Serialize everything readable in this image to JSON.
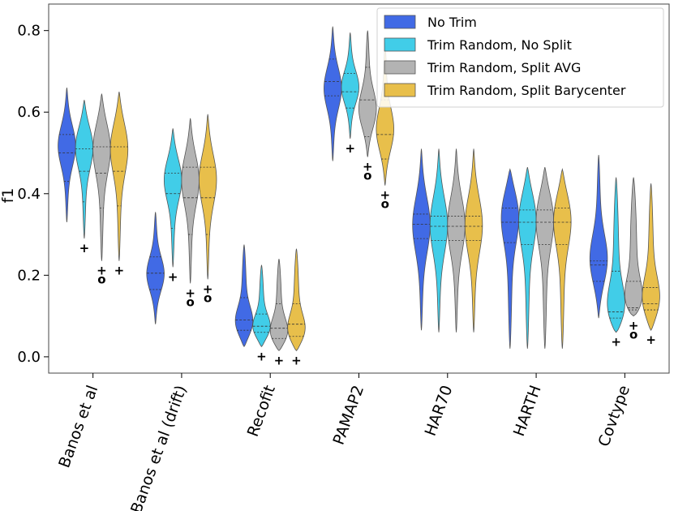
{
  "chart_data": {
    "type": "violin",
    "ylabel": "f1",
    "xlabel": "",
    "ylim": [
      -0.04,
      0.865
    ],
    "yticks": [
      "0.0",
      "0.2",
      "0.4",
      "0.6",
      "0.8"
    ],
    "ytick_values": [
      0.0,
      0.2,
      0.4,
      0.6,
      0.8
    ],
    "grid": false,
    "legend_position": "top-right",
    "categories": [
      "Banos et al",
      "Banos et al (drift)",
      "Recofit",
      "PAMAP2",
      "HAR70",
      "HARTH",
      "Covtype"
    ],
    "series": [
      {
        "name": "No Trim",
        "color": "#2050e0",
        "violins": [
          {
            "min": 0.33,
            "max": 0.66,
            "q1": 0.43,
            "median": 0.5,
            "q3": 0.545,
            "peak": 0.52,
            "bias": 0.25,
            "outliers": []
          },
          {
            "min": 0.08,
            "max": 0.355,
            "q1": 0.165,
            "median": 0.205,
            "q3": 0.245,
            "peak": 0.2,
            "bias": 0.15,
            "outliers": []
          },
          {
            "min": 0.025,
            "max": 0.275,
            "q1": 0.065,
            "median": 0.09,
            "q3": 0.145,
            "peak": 0.075,
            "bias": -0.3,
            "outliers": []
          },
          {
            "min": 0.48,
            "max": 0.81,
            "q1": 0.64,
            "median": 0.675,
            "q3": 0.73,
            "peak": 0.66,
            "bias": 0.1,
            "outliers": []
          },
          {
            "min": 0.065,
            "max": 0.51,
            "q1": 0.29,
            "median": 0.325,
            "q3": 0.35,
            "peak": 0.33,
            "bias": 0.0,
            "outliers": []
          },
          {
            "min": 0.02,
            "max": 0.46,
            "q1": 0.28,
            "median": 0.33,
            "q3": 0.365,
            "peak": 0.36,
            "bias": 0.4,
            "outliers": []
          },
          {
            "min": 0.095,
            "max": 0.495,
            "q1": 0.185,
            "median": 0.225,
            "q3": 0.235,
            "peak": 0.23,
            "bias": 0.0,
            "outliers": []
          }
        ]
      },
      {
        "name": "Trim Random, No Split",
        "color": "#20c4e4",
        "violins": [
          {
            "min": 0.29,
            "max": 0.63,
            "q1": 0.38,
            "median": 0.455,
            "q3": 0.51,
            "peak": 0.52,
            "bias": 0.4,
            "outliers": [
              "+"
            ]
          },
          {
            "min": 0.22,
            "max": 0.56,
            "q1": 0.315,
            "median": 0.4,
            "q3": 0.45,
            "peak": 0.44,
            "bias": 0.4,
            "outliers": [
              "+"
            ]
          },
          {
            "min": 0.025,
            "max": 0.225,
            "q1": 0.06,
            "median": 0.075,
            "q3": 0.105,
            "peak": 0.065,
            "bias": -0.3,
            "outliers": [
              "+"
            ]
          },
          {
            "min": 0.535,
            "max": 0.795,
            "q1": 0.61,
            "median": 0.65,
            "q3": 0.695,
            "peak": 0.66,
            "bias": 0.1,
            "outliers": [
              "+"
            ]
          },
          {
            "min": 0.06,
            "max": 0.51,
            "q1": 0.285,
            "median": 0.32,
            "q3": 0.345,
            "peak": 0.33,
            "bias": 0.0,
            "outliers": []
          },
          {
            "min": 0.02,
            "max": 0.465,
            "q1": 0.275,
            "median": 0.33,
            "q3": 0.36,
            "peak": 0.35,
            "bias": 0.3,
            "outliers": []
          },
          {
            "min": 0.06,
            "max": 0.44,
            "q1": 0.095,
            "median": 0.11,
            "q3": 0.21,
            "peak": 0.1,
            "bias": -0.5,
            "outliers": [
              "+"
            ]
          }
        ]
      },
      {
        "name": "Trim Random, Split AVG",
        "color": "#a6a6a6",
        "violins": [
          {
            "min": 0.235,
            "max": 0.645,
            "q1": 0.365,
            "median": 0.45,
            "q3": 0.515,
            "peak": 0.52,
            "bias": 0.4,
            "outliers": [
              "+",
              "o"
            ]
          },
          {
            "min": 0.18,
            "max": 0.585,
            "q1": 0.3,
            "median": 0.39,
            "q3": 0.465,
            "peak": 0.44,
            "bias": 0.4,
            "outliers": [
              "+",
              "o"
            ]
          },
          {
            "min": 0.015,
            "max": 0.24,
            "q1": 0.045,
            "median": 0.07,
            "q3": 0.13,
            "peak": 0.05,
            "bias": -0.3,
            "outliers": [
              "+"
            ]
          },
          {
            "min": 0.49,
            "max": 0.8,
            "q1": 0.54,
            "median": 0.63,
            "q3": 0.71,
            "peak": 0.6,
            "bias": 0.2,
            "outliers": [
              "+",
              "o"
            ]
          },
          {
            "min": 0.06,
            "max": 0.51,
            "q1": 0.285,
            "median": 0.32,
            "q3": 0.345,
            "peak": 0.33,
            "bias": 0.0,
            "outliers": []
          },
          {
            "min": 0.02,
            "max": 0.465,
            "q1": 0.275,
            "median": 0.33,
            "q3": 0.36,
            "peak": 0.35,
            "bias": 0.3,
            "outliers": []
          },
          {
            "min": 0.1,
            "max": 0.44,
            "q1": 0.115,
            "median": 0.12,
            "q3": 0.185,
            "peak": 0.115,
            "bias": -0.5,
            "outliers": [
              "+",
              "o"
            ]
          }
        ]
      },
      {
        "name": "Trim Random, Split Barycenter",
        "color": "#e4b42c",
        "violins": [
          {
            "min": 0.235,
            "max": 0.65,
            "q1": 0.37,
            "median": 0.455,
            "q3": 0.515,
            "peak": 0.52,
            "bias": 0.4,
            "outliers": [
              "+"
            ]
          },
          {
            "min": 0.19,
            "max": 0.595,
            "q1": 0.3,
            "median": 0.39,
            "q3": 0.465,
            "peak": 0.44,
            "bias": 0.4,
            "outliers": [
              "+",
              "o"
            ]
          },
          {
            "min": 0.015,
            "max": 0.265,
            "q1": 0.05,
            "median": 0.08,
            "q3": 0.13,
            "peak": 0.055,
            "bias": -0.3,
            "outliers": [
              "+"
            ]
          },
          {
            "min": 0.42,
            "max": 0.77,
            "q1": 0.485,
            "median": 0.545,
            "q3": 0.63,
            "peak": 0.55,
            "bias": 0.2,
            "outliers": [
              "+",
              "o"
            ]
          },
          {
            "min": 0.06,
            "max": 0.51,
            "q1": 0.285,
            "median": 0.32,
            "q3": 0.345,
            "peak": 0.33,
            "bias": 0.0,
            "outliers": []
          },
          {
            "min": 0.02,
            "max": 0.46,
            "q1": 0.275,
            "median": 0.33,
            "q3": 0.365,
            "peak": 0.35,
            "bias": 0.3,
            "outliers": []
          },
          {
            "min": 0.065,
            "max": 0.425,
            "q1": 0.115,
            "median": 0.13,
            "q3": 0.17,
            "peak": 0.125,
            "bias": -0.3,
            "outliers": [
              "+"
            ]
          }
        ]
      }
    ]
  }
}
